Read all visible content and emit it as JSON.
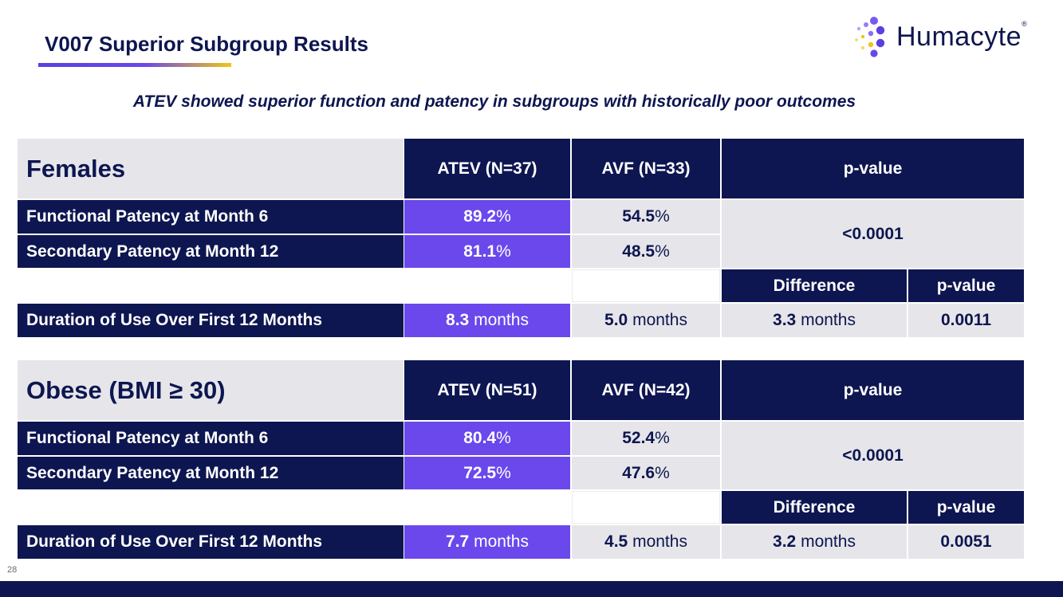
{
  "header": {
    "title": "V007 Superior Subgroup Results",
    "logo_text": "Humacyte",
    "logo_mark": "®",
    "subtitle": "ATEV showed superior function and patency in subgroups with historically poor outcomes"
  },
  "tables": [
    {
      "group_label": "Females",
      "atev_header": "ATEV (N=37)",
      "avf_header": "AVF (N=33)",
      "pvalue_header": "p-value",
      "row1": {
        "label": "Functional Patency at Month 6",
        "atev_value": "89.2",
        "atev_unit": "%",
        "avf_value": "54.5",
        "avf_unit": "%"
      },
      "row2": {
        "label": "Secondary Patency at Month 12",
        "atev_value": "81.1",
        "atev_unit": "%",
        "avf_value": "48.5",
        "avf_unit": "%"
      },
      "patency_pvalue": "<0.0001",
      "difference_header": "Difference",
      "pvalue_header2": "p-value",
      "duration": {
        "label": "Duration of Use Over First 12 Months",
        "atev_value": "8.3",
        "avf_value": "5.0",
        "difference_value": "3.3",
        "unit": " months",
        "pvalue": "0.0011"
      }
    },
    {
      "group_label": "Obese (BMI ≥ 30)",
      "atev_header": "ATEV (N=51)",
      "avf_header": "AVF (N=42)",
      "pvalue_header": "p-value",
      "row1": {
        "label": "Functional Patency at Month 6",
        "atev_value": "80.4",
        "atev_unit": "%",
        "avf_value": "52.4",
        "avf_unit": "%"
      },
      "row2": {
        "label": "Secondary Patency at Month 12",
        "atev_value": "72.5",
        "atev_unit": "%",
        "avf_value": "47.6",
        "avf_unit": "%"
      },
      "patency_pvalue": "<0.0001",
      "difference_header": "Difference",
      "pvalue_header2": "p-value",
      "duration": {
        "label": "Duration of Use Over First 12 Months",
        "atev_value": "7.7",
        "avf_value": "4.5",
        "difference_value": "3.2",
        "unit": " months",
        "pvalue": "0.0051"
      }
    }
  ],
  "footer": {
    "page_number": "28"
  },
  "colors": {
    "navy": "#0d1650",
    "purple": "#6a48ec",
    "grey": "#e6e6ea",
    "gold": "#f0c419"
  }
}
